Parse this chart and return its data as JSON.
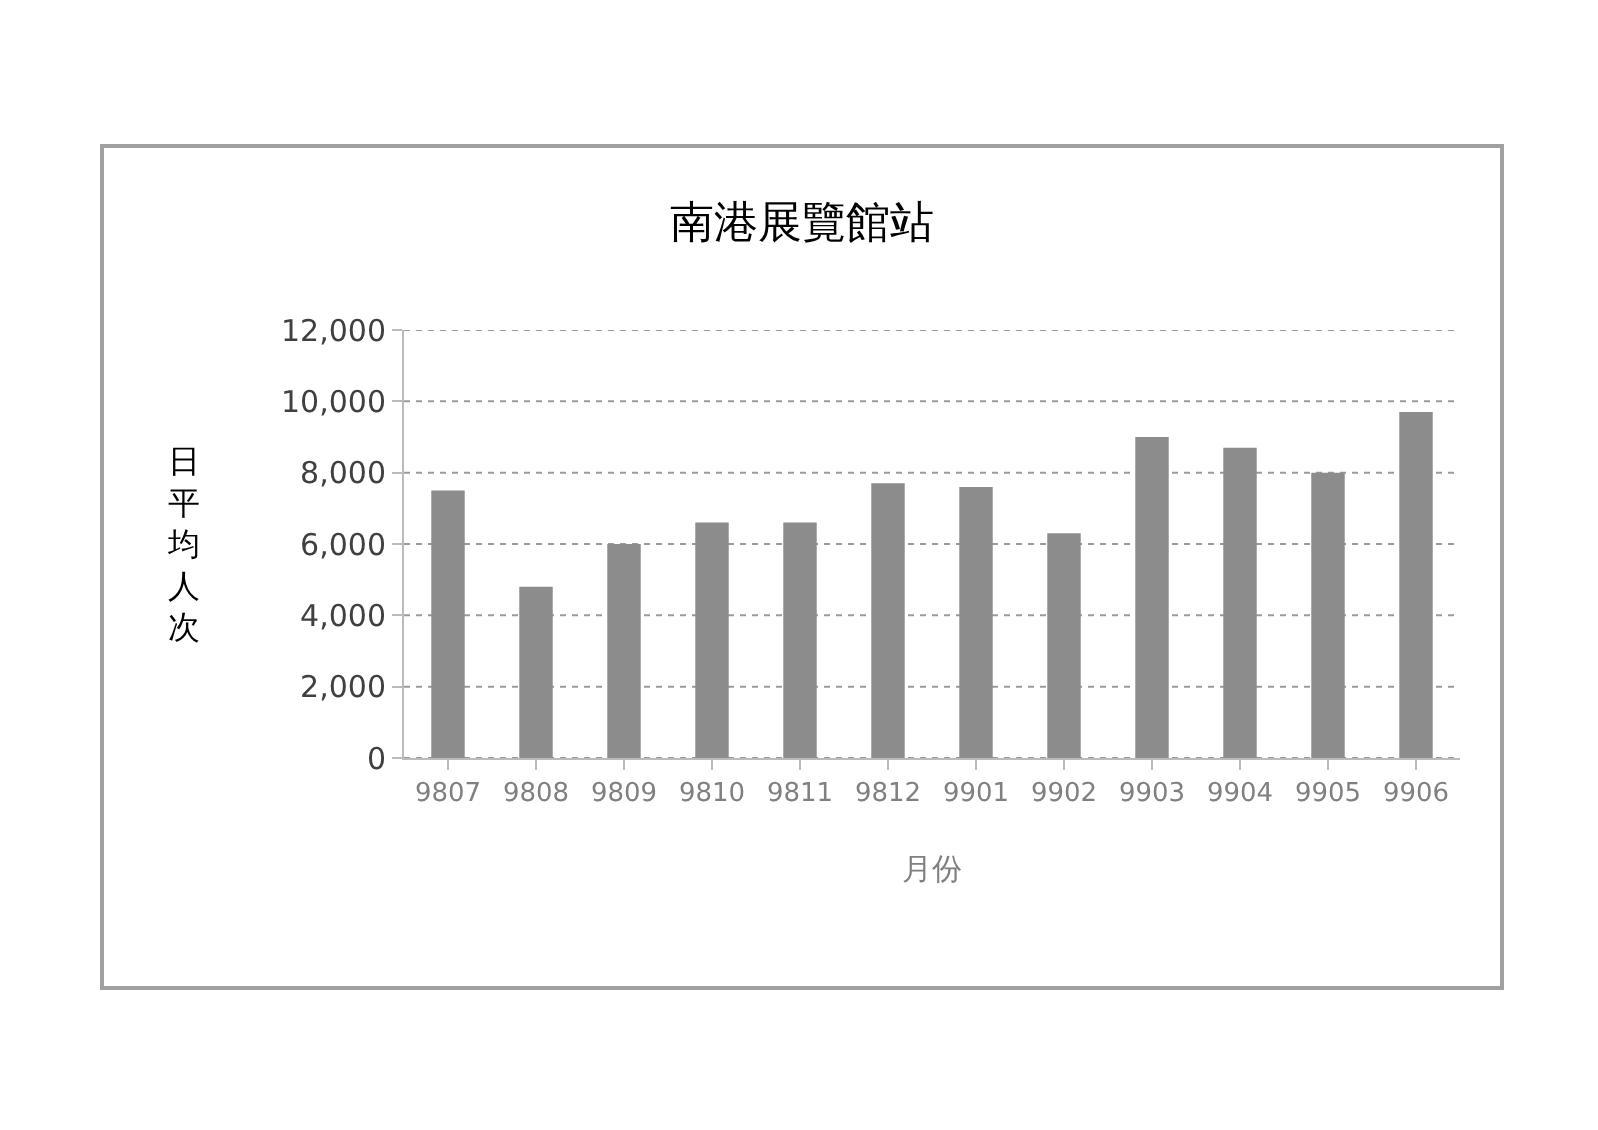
{
  "chart_data": {
    "type": "bar",
    "title": "南港展覽館站",
    "xlabel": "月份",
    "ylabel": "日平均人次",
    "categories": [
      "9807",
      "9808",
      "9809",
      "9810",
      "9811",
      "9812",
      "9901",
      "9902",
      "9903",
      "9904",
      "9905",
      "9906"
    ],
    "values": [
      7500,
      4800,
      6000,
      6600,
      6600,
      7700,
      7600,
      6300,
      9000,
      8700,
      8000,
      9700
    ],
    "color": "#8c8c8c",
    "ylim": [
      0,
      12000
    ],
    "yticks": [
      {
        "value": 0,
        "label": "0"
      },
      {
        "value": 2000,
        "label": "2,000"
      },
      {
        "value": 4000,
        "label": "4,000"
      },
      {
        "value": 6000,
        "label": "6,000"
      },
      {
        "value": 8000,
        "label": "8,000"
      },
      {
        "value": 10000,
        "label": "10,000"
      },
      {
        "value": 12000,
        "label": "12,000"
      }
    ],
    "grid": "y"
  }
}
